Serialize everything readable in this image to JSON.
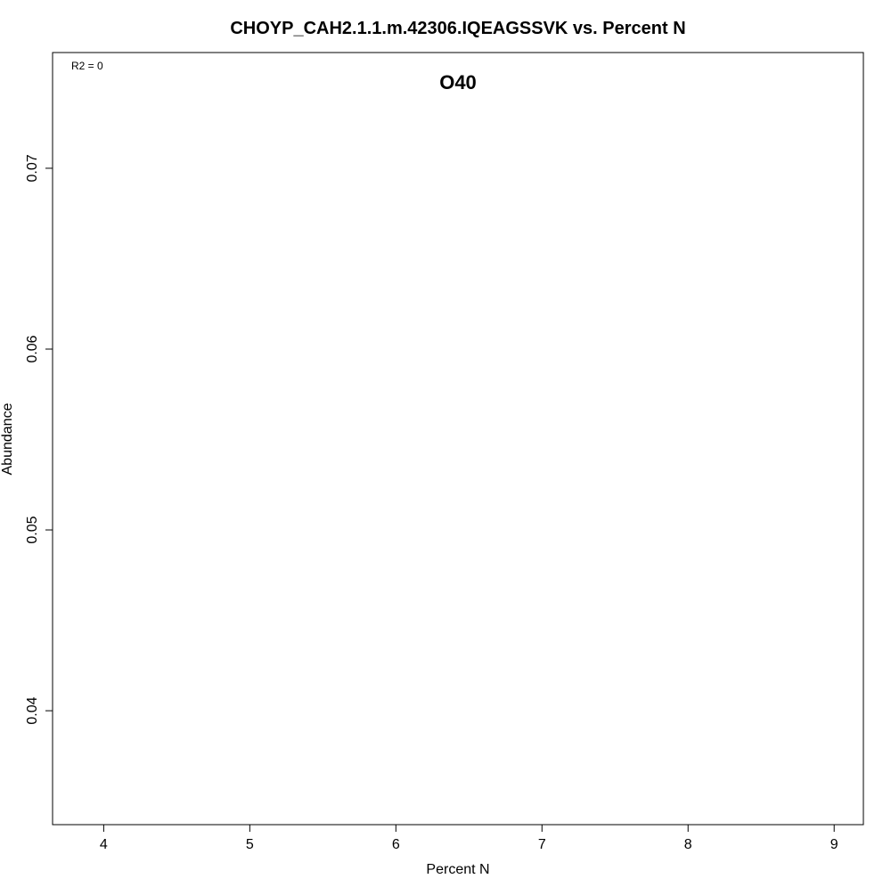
{
  "chart_data": {
    "type": "scatter",
    "title": "CHOYP_CAH2.1.1.m.42306.IQEAGSSVK vs. Percent N",
    "subtitle": "O40",
    "annotation": "R2 = 0",
    "xlabel": "Percent N",
    "ylabel": "Abundance",
    "xlim": [
      3.65,
      9.2
    ],
    "ylim": [
      0.0337,
      0.0764
    ],
    "x_ticks": [
      4,
      5,
      6,
      7,
      8,
      9
    ],
    "x_tick_labels": [
      "4",
      "5",
      "6",
      "7",
      "8",
      "9"
    ],
    "y_ticks": [
      0.04,
      0.05,
      0.06,
      0.07
    ],
    "y_tick_labels": [
      "0.04",
      "0.05",
      "0.06",
      "0.07"
    ],
    "grid": false,
    "series": [
      {
        "x": [],
        "y": []
      }
    ],
    "colors": {
      "axis": "#000000",
      "background": "#ffffff",
      "points": "#000000"
    }
  }
}
